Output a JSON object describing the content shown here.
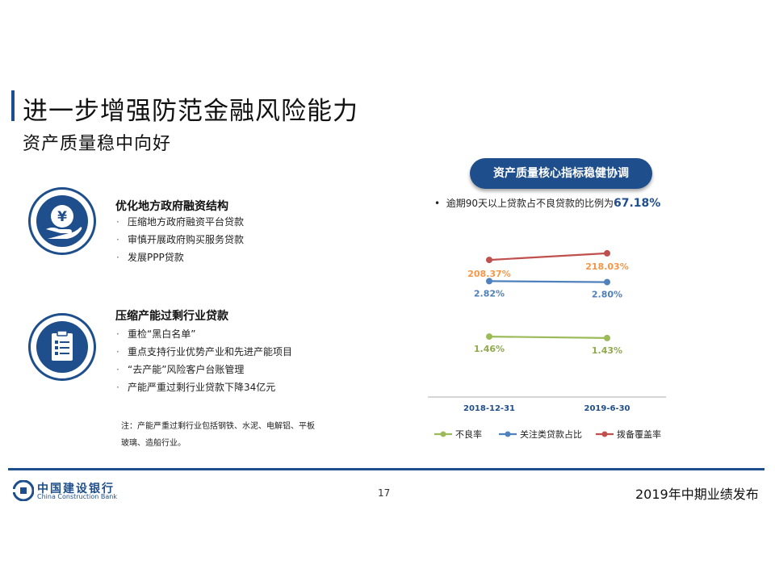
{
  "header": {
    "title": "进一步增强防范金融风险能力",
    "subtitle": "资产质量稳中向好"
  },
  "sections": [
    {
      "title": "优化地方政府融资结构",
      "icon": "yen-hand-icon",
      "items": [
        "压缩地方政府融资平台贷款",
        "审慎开展政府购买服务贷款",
        "发展PPP贷款"
      ]
    },
    {
      "title": "压缩产能过剩行业贷款",
      "icon": "clipboard-list-icon",
      "items": [
        "重检“黑白名单”",
        "重点支持行业优势产业和先进产能项目",
        "“去产能”风险客户台账管理",
        "产能严重过剩行业贷款下降34亿元"
      ]
    }
  ],
  "note": "注：产能严重过剩行业包括钢铁、水泥、电解铝、平板玻璃、造船行业。",
  "chart_header": {
    "pill": "资产质量核心指标稳健协调",
    "bullet_text": "逾期90天以上贷款占不良贷款的比例为",
    "bullet_value": "67.18%"
  },
  "chart_data": {
    "type": "line",
    "categories": [
      "2018-12-31",
      "2019-6-30"
    ],
    "series": [
      {
        "name": "不良率",
        "values": [
          1.46,
          1.43
        ],
        "labels": [
          "1.46%",
          "1.43%"
        ],
        "color": "#9bbb59",
        "label_color": "#8faa4a"
      },
      {
        "name": "关注类贷款占比",
        "values": [
          2.82,
          2.8
        ],
        "labels": [
          "2.82%",
          "2.80%"
        ],
        "color": "#4f81bd",
        "label_color": "#4f81bd"
      },
      {
        "name": "拨备覆盖率",
        "values": [
          208.37,
          218.03
        ],
        "labels": [
          "208.37%",
          "218.03%"
        ],
        "color": "#c0504d",
        "label_color": "#f79646"
      }
    ],
    "legend_position": "bottom",
    "grid": false
  },
  "footer": {
    "bank_name_cn": "中国建设银行",
    "bank_name_en": "China Construction Bank",
    "page_number": "17",
    "report_name": "2019年中期业绩发布"
  }
}
